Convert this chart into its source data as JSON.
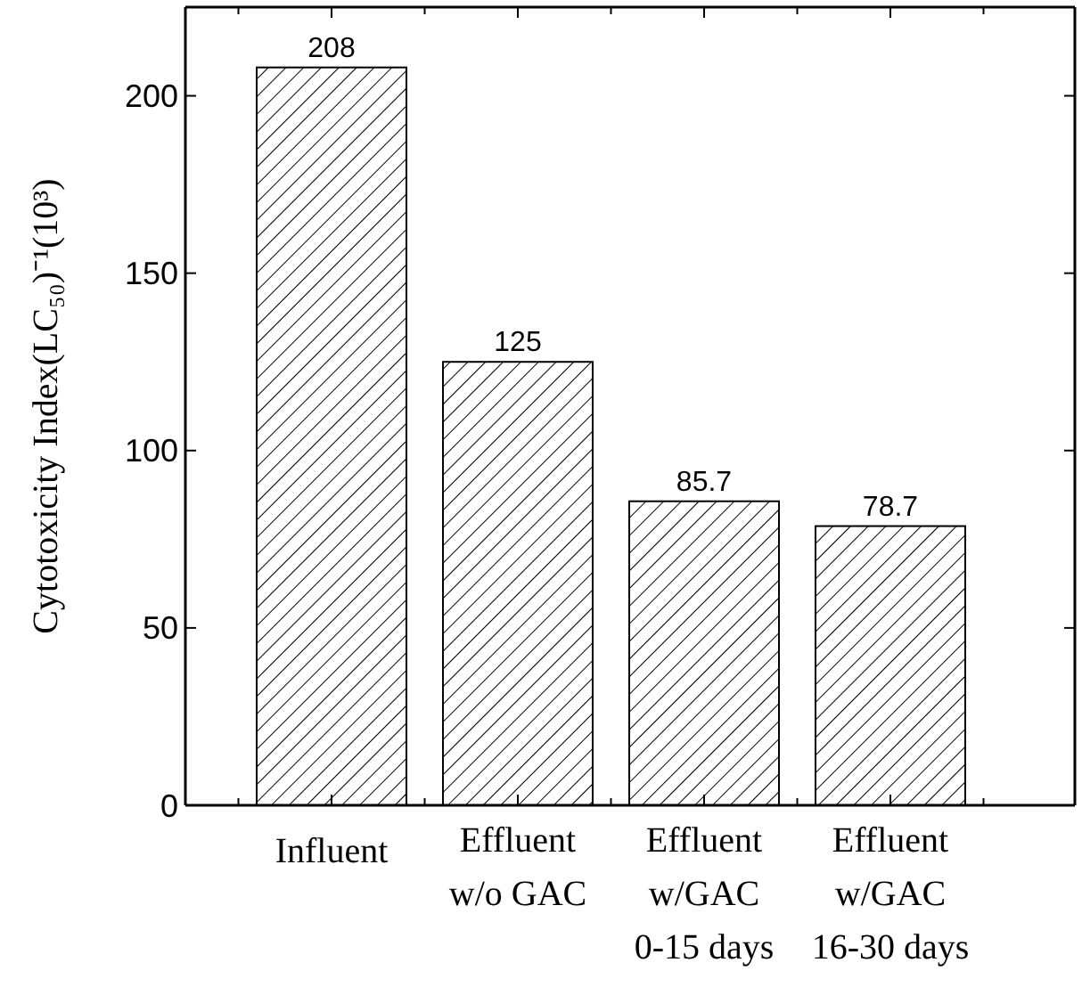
{
  "chart_data": {
    "type": "bar",
    "ylabel": "Cytotoxicity Index(LC₅₀)⁻¹(10³)",
    "categories": [
      "Influent",
      "Effluent\nw/o GAC",
      "Effluent\nw/GAC\n0-15 days",
      "Effluent\nw/GAC\n16-30 days"
    ],
    "values": [
      208,
      125,
      85.7,
      78.7
    ],
    "color": "#000000",
    "ylim": [
      0,
      225
    ],
    "yticks": [
      0,
      50,
      100,
      150,
      200
    ],
    "data_labels": true
  }
}
